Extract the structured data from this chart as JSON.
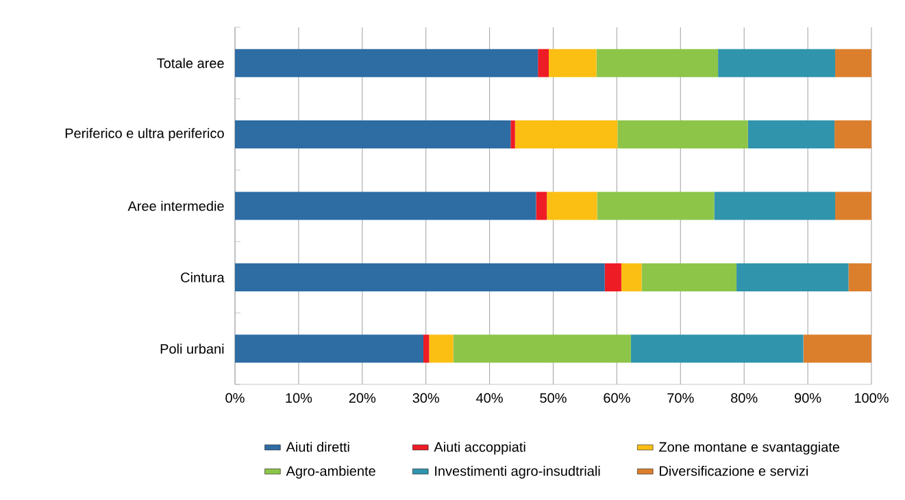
{
  "chart_data": {
    "type": "bar",
    "orientation": "horizontal",
    "stacked": true,
    "categories": [
      "Totale aree",
      "Periferico e ultra periferico",
      "Aree intermedie",
      "Cintura",
      "Poli urbani"
    ],
    "series": [
      {
        "name": "Aiuti diretti",
        "color": "#2e6ca4",
        "values": [
          47.6,
          43.3,
          47.3,
          58.1,
          29.6
        ]
      },
      {
        "name": "Aiuti accoppiati",
        "color": "#ee1c25",
        "values": [
          1.7,
          0.7,
          1.7,
          2.6,
          0.9
        ]
      },
      {
        "name": "Zone montane e svantaggiate",
        "color": "#fbbf14",
        "values": [
          7.5,
          16.1,
          7.9,
          3.2,
          3.8
        ]
      },
      {
        "name": "Agro-ambiente",
        "color": "#8dc549",
        "values": [
          19.1,
          20.5,
          18.4,
          14.9,
          27.9
        ]
      },
      {
        "name": "Investimenti agro-insudtriali",
        "color": "#3194ad",
        "values": [
          18.4,
          13.6,
          19.0,
          17.6,
          27.1
        ]
      },
      {
        "name": "Diversificazione e servizi",
        "color": "#dc7f2d",
        "values": [
          5.7,
          5.8,
          5.7,
          3.6,
          10.7
        ]
      }
    ],
    "xlim": [
      0,
      100
    ],
    "xticks": [
      {
        "value": 0,
        "label": "0%"
      },
      {
        "value": 10,
        "label": "10%"
      },
      {
        "value": 20,
        "label": "20%"
      },
      {
        "value": 30,
        "label": "30%"
      },
      {
        "value": 40,
        "label": "40%"
      },
      {
        "value": 50,
        "label": "50%"
      },
      {
        "value": 60,
        "label": "60%"
      },
      {
        "value": 70,
        "label": "70%"
      },
      {
        "value": 80,
        "label": "80%"
      },
      {
        "value": 90,
        "label": "90%"
      },
      {
        "value": 100,
        "label": "100%"
      }
    ],
    "grid": "x",
    "legend": "bottom"
  }
}
